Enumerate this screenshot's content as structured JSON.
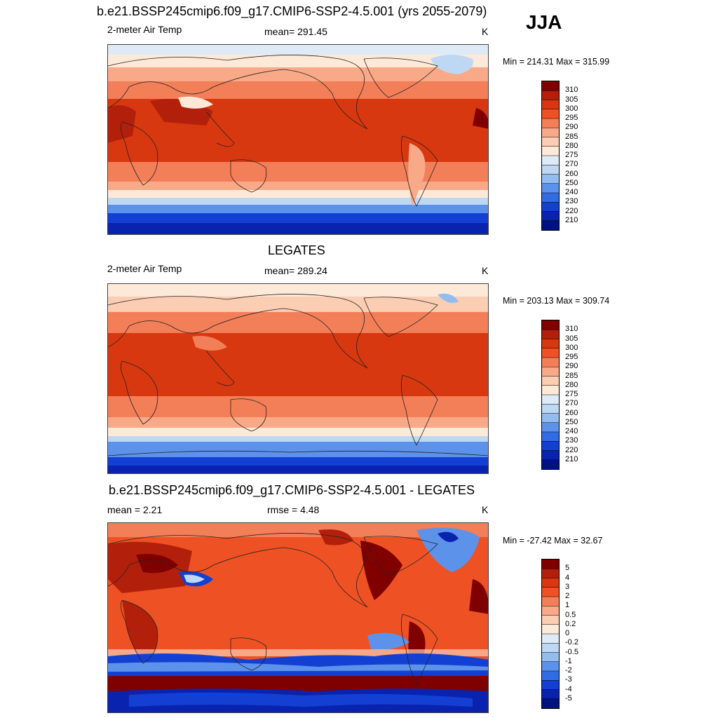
{
  "season_label": "JJA",
  "chart_data": [
    {
      "type": "heatmap",
      "title": "b.e21.BSSP245cmip6.f09_g17.CMIP6-SSP2-4.5.001 (yrs 2055-2079)",
      "left_label": "2-meter Air Temp",
      "center_label": "mean= 291.45",
      "units": "K",
      "minmax": "Min = 214.31 Max = 315.99",
      "colorbar": {
        "labels": [
          "310",
          "305",
          "300",
          "295",
          "290",
          "285",
          "280",
          "275",
          "270",
          "260",
          "250",
          "240",
          "230",
          "220",
          "210"
        ],
        "colors": [
          "#800000",
          "#b2200c",
          "#d8380f",
          "#ee5224",
          "#f37f59",
          "#f8a988",
          "#fbcdb2",
          "#fde9d8",
          "#deebf7",
          "#bed8f3",
          "#93bdf1",
          "#5d92ea",
          "#326ce3",
          "#1340d3",
          "#0a23ae",
          "#001180"
        ]
      }
    },
    {
      "type": "heatmap",
      "title": "LEGATES",
      "left_label": "2-meter Air Temp",
      "center_label": "mean= 289.24",
      "units": "K",
      "minmax": "Min = 203.13 Max = 309.74",
      "colorbar": {
        "labels": [
          "310",
          "305",
          "300",
          "295",
          "290",
          "285",
          "280",
          "275",
          "270",
          "260",
          "250",
          "240",
          "230",
          "220",
          "210"
        ],
        "colors": [
          "#800000",
          "#b2200c",
          "#d8380f",
          "#ee5224",
          "#f37f59",
          "#f8a988",
          "#fbcdb2",
          "#fde9d8",
          "#deebf7",
          "#bed8f3",
          "#93bdf1",
          "#5d92ea",
          "#326ce3",
          "#1340d3",
          "#0a23ae",
          "#001180"
        ]
      }
    },
    {
      "type": "heatmap",
      "title": "b.e21.BSSP245cmip6.f09_g17.CMIP6-SSP2-4.5.001 - LEGATES",
      "left_label": "mean =   2.21",
      "center_label": "rmse =   4.48",
      "units": "K",
      "minmax": "Min = -27.42 Max =  32.67",
      "colorbar": {
        "labels": [
          "5",
          "4",
          "3",
          "2",
          "1",
          "0.5",
          "0.2",
          "0",
          "-0.2",
          "-0.5",
          "-1",
          "-2",
          "-3",
          "-4",
          "-5"
        ],
        "colors": [
          "#800000",
          "#b2200c",
          "#d8380f",
          "#ee5224",
          "#f37f59",
          "#f8a988",
          "#fbcdb2",
          "#fde9d8",
          "#deebf7",
          "#bed8f3",
          "#93bdf1",
          "#5d92ea",
          "#326ce3",
          "#1340d3",
          "#0a23ae",
          "#001180"
        ]
      }
    }
  ]
}
